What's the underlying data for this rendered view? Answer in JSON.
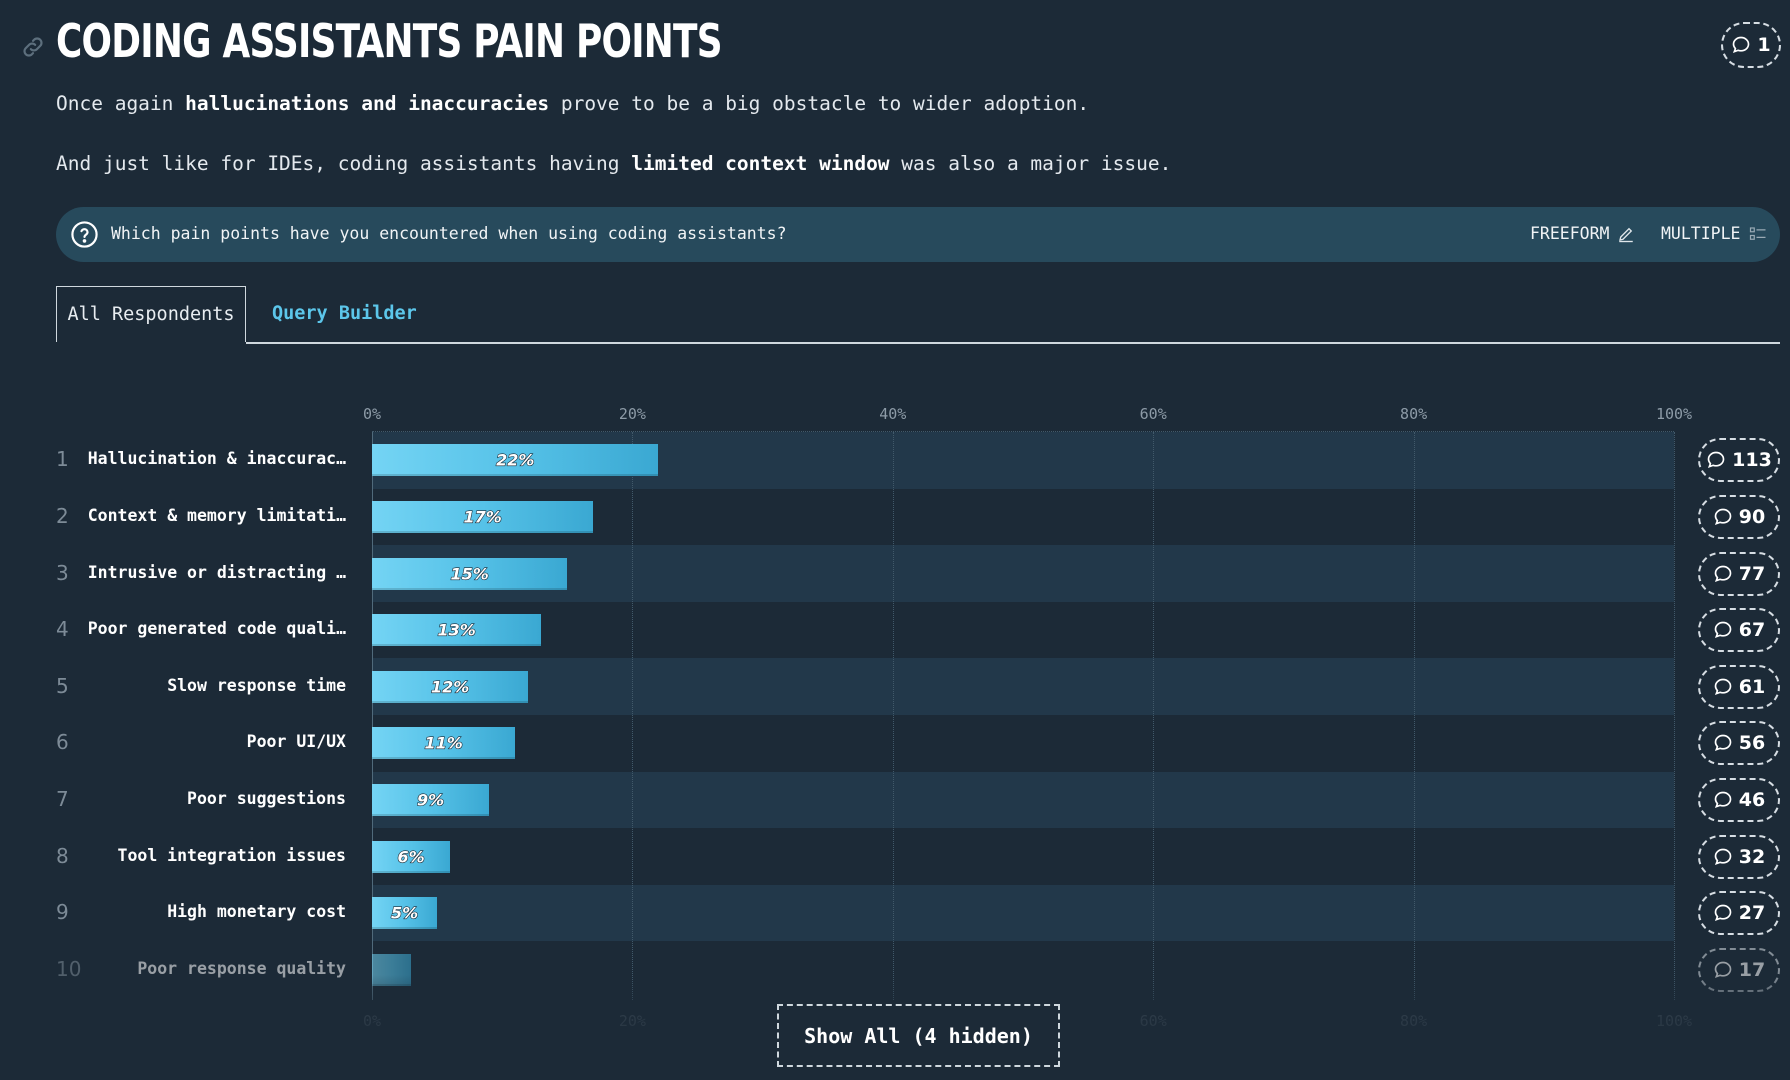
{
  "header": {
    "title": "CODING ASSISTANTS PAIN POINTS",
    "comment_count": "1"
  },
  "intro": {
    "p1_before": "Once again ",
    "p1_bold": "hallucinations and inaccuracies",
    "p1_after": " prove to be a big obstacle to wider adoption.",
    "p2_before": "And just like for IDEs, coding assistants having ",
    "p2_bold": "limited context window",
    "p2_after": " was also a major issue."
  },
  "question": {
    "text": "Which pain points have you encountered when using coding assistants?",
    "freeform_label": "FREEFORM",
    "multiple_label": "MULTIPLE"
  },
  "tabs": {
    "active": "All Respondents",
    "inactive": "Query Builder"
  },
  "chart_data": {
    "type": "bar",
    "orientation": "horizontal",
    "x_ticks": [
      "0%",
      "20%",
      "40%",
      "60%",
      "80%",
      "100%"
    ],
    "xlim": [
      0,
      100
    ],
    "rows": [
      {
        "rank": "1",
        "label": "Hallucination & inaccurac…",
        "value": 22,
        "value_label": "22%",
        "comments": "113"
      },
      {
        "rank": "2",
        "label": "Context & memory limitati…",
        "value": 17,
        "value_label": "17%",
        "comments": "90"
      },
      {
        "rank": "3",
        "label": "Intrusive or distracting …",
        "value": 15,
        "value_label": "15%",
        "comments": "77"
      },
      {
        "rank": "4",
        "label": "Poor generated code quali…",
        "value": 13,
        "value_label": "13%",
        "comments": "67"
      },
      {
        "rank": "5",
        "label": "Slow response time",
        "value": 12,
        "value_label": "12%",
        "comments": "61"
      },
      {
        "rank": "6",
        "label": "Poor UI/UX",
        "value": 11,
        "value_label": "11%",
        "comments": "56"
      },
      {
        "rank": "7",
        "label": "Poor suggestions",
        "value": 9,
        "value_label": "9%",
        "comments": "46"
      },
      {
        "rank": "8",
        "label": "Tool integration issues",
        "value": 6,
        "value_label": "6%",
        "comments": "32"
      },
      {
        "rank": "9",
        "label": "High monetary cost",
        "value": 5,
        "value_label": "5%",
        "comments": "27"
      },
      {
        "rank": "10",
        "label": "Poor response quality",
        "value": 3,
        "value_label": "",
        "comments": "17"
      }
    ]
  },
  "show_all_label": "Show All (4 hidden)",
  "colors": {
    "background": "#1c2a37",
    "bar": "#56c2e8",
    "accent_tab": "#5cc6ea",
    "question_bar": "#274a5c"
  }
}
